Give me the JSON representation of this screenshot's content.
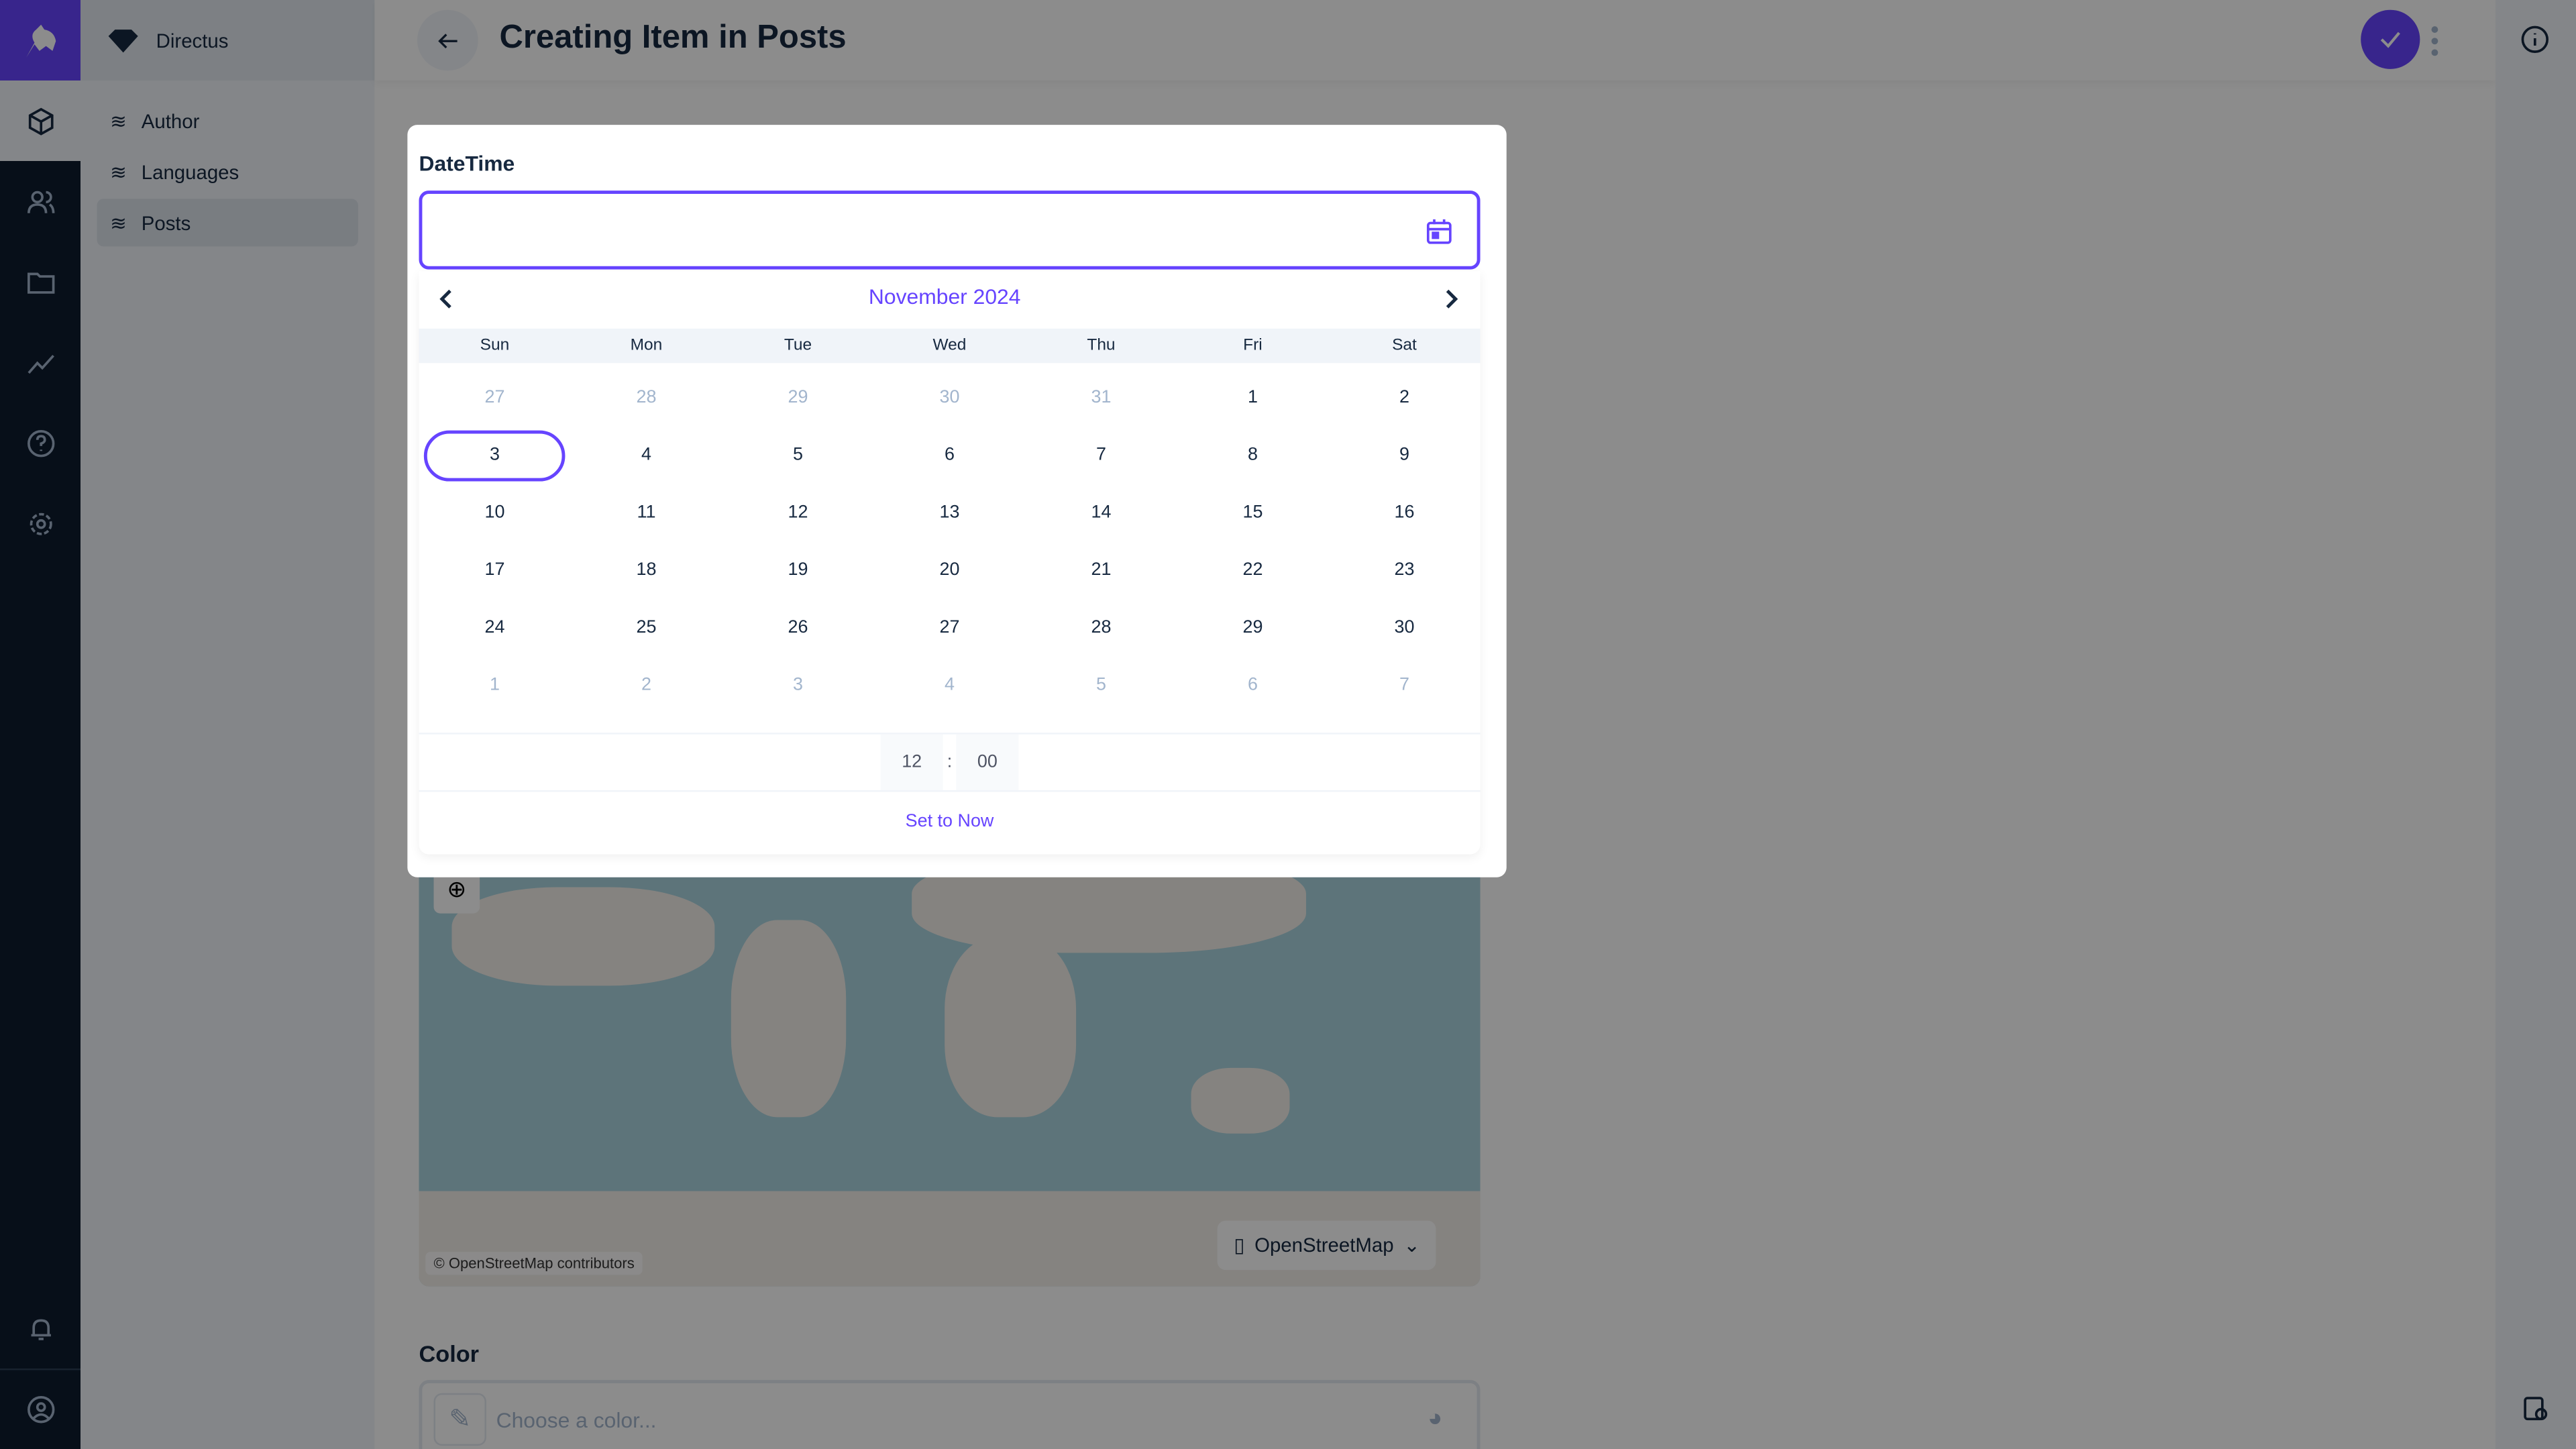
{
  "app": {
    "name": "Directus",
    "accent": "#6644ff"
  },
  "sidebar": {
    "items": [
      {
        "label": "Author"
      },
      {
        "label": "Languages"
      },
      {
        "label": "Posts",
        "active": true
      }
    ]
  },
  "rail": {
    "icons": [
      "content-icon",
      "users-icon",
      "files-icon",
      "insights-icon",
      "help-icon",
      "settings-icon",
      "notifications-icon",
      "user-icon"
    ]
  },
  "header": {
    "title": "Creating Item in Posts"
  },
  "modal": {
    "label": "DateTime",
    "value": "",
    "calendar": {
      "month": "November 2024",
      "weekdays": [
        "Sun",
        "Mon",
        "Tue",
        "Wed",
        "Thu",
        "Fri",
        "Sat"
      ],
      "weeks": [
        [
          {
            "d": "27",
            "m": 1
          },
          {
            "d": "28",
            "m": 1
          },
          {
            "d": "29",
            "m": 1
          },
          {
            "d": "30",
            "m": 1
          },
          {
            "d": "31",
            "m": 1
          },
          {
            "d": "1"
          },
          {
            "d": "2"
          }
        ],
        [
          {
            "d": "3",
            "s": 1
          },
          {
            "d": "4"
          },
          {
            "d": "5"
          },
          {
            "d": "6"
          },
          {
            "d": "7"
          },
          {
            "d": "8"
          },
          {
            "d": "9"
          }
        ],
        [
          {
            "d": "10"
          },
          {
            "d": "11"
          },
          {
            "d": "12"
          },
          {
            "d": "13"
          },
          {
            "d": "14"
          },
          {
            "d": "15"
          },
          {
            "d": "16"
          }
        ],
        [
          {
            "d": "17"
          },
          {
            "d": "18"
          },
          {
            "d": "19"
          },
          {
            "d": "20"
          },
          {
            "d": "21"
          },
          {
            "d": "22"
          },
          {
            "d": "23"
          }
        ],
        [
          {
            "d": "24"
          },
          {
            "d": "25"
          },
          {
            "d": "26"
          },
          {
            "d": "27"
          },
          {
            "d": "28"
          },
          {
            "d": "29"
          },
          {
            "d": "30"
          }
        ],
        [
          {
            "d": "1",
            "m": 1
          },
          {
            "d": "2",
            "m": 1
          },
          {
            "d": "3",
            "m": 1
          },
          {
            "d": "4",
            "m": 1
          },
          {
            "d": "5",
            "m": 1
          },
          {
            "d": "6",
            "m": 1
          },
          {
            "d": "7",
            "m": 1
          }
        ]
      ],
      "hour": "12",
      "sep": ":",
      "minute": "00",
      "set_now": "Set to Now"
    }
  },
  "map": {
    "attribution": "© OpenStreetMap contributors",
    "layer": "OpenStreetMap"
  },
  "color": {
    "label": "Color",
    "placeholder": "Choose a color..."
  }
}
